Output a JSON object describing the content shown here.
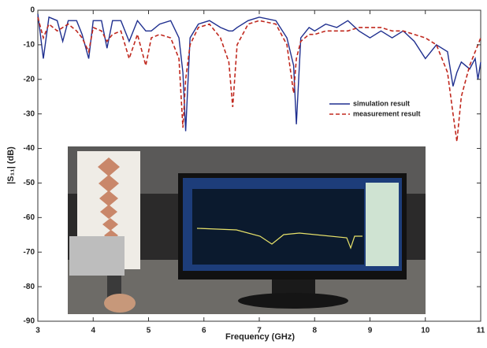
{
  "chart_data": {
    "type": "line",
    "xlabel": "Frequency (GHz)",
    "ylabel": "|S₁₁| (dB)",
    "x": [
      3.0,
      3.1,
      3.2,
      3.35,
      3.45,
      3.55,
      3.7,
      3.8,
      3.92,
      4.0,
      4.15,
      4.25,
      4.35,
      4.5,
      4.65,
      4.8,
      4.95,
      5.05,
      5.2,
      5.4,
      5.55,
      5.62,
      5.67,
      5.75,
      5.9,
      6.1,
      6.3,
      6.45,
      6.52,
      6.6,
      6.8,
      7.0,
      7.3,
      7.5,
      7.62,
      7.67,
      7.75,
      7.9,
      8.0,
      8.2,
      8.4,
      8.6,
      8.8,
      9.0,
      9.2,
      9.4,
      9.6,
      9.8,
      10.0,
      10.2,
      10.4,
      10.5,
      10.57,
      10.65,
      10.8,
      10.9,
      10.95,
      11.0
    ],
    "series": [
      {
        "name": "simulation result",
        "color": "#1f2f8f",
        "dash": false,
        "values": [
          -1,
          -14,
          -2,
          -3,
          -9,
          -3,
          -3,
          -7,
          -14,
          -3,
          -3,
          -11,
          -3,
          -3,
          -9,
          -3,
          -6,
          -6,
          -4,
          -3,
          -8,
          -18,
          -35,
          -8,
          -4,
          -3,
          -5,
          -6,
          -6,
          -5,
          -3,
          -2,
          -3,
          -8,
          -16,
          -33,
          -8,
          -5,
          -6,
          -4,
          -5,
          -3,
          -6,
          -8,
          -6,
          -8,
          -6,
          -9,
          -14,
          -10,
          -12,
          -22,
          -18,
          -15,
          -17,
          -14,
          -20,
          -15
        ]
      },
      {
        "name": "measurement result",
        "color": "#c0281e",
        "dash": true,
        "values": [
          -2,
          -8,
          -4,
          -6,
          -5,
          -4,
          -6,
          -8,
          -12,
          -5,
          -6,
          -9,
          -7,
          -6,
          -14,
          -7,
          -16,
          -8,
          -7,
          -8,
          -14,
          -34,
          -20,
          -10,
          -5,
          -4,
          -8,
          -15,
          -28,
          -10,
          -4,
          -3,
          -4,
          -10,
          -24,
          -14,
          -9,
          -7,
          -7,
          -6,
          -6,
          -6,
          -5,
          -5,
          -5,
          -6,
          -6,
          -7,
          -8,
          -10,
          -18,
          -30,
          -38,
          -25,
          -16,
          -12,
          -10,
          -8
        ]
      }
    ],
    "xlim": [
      3,
      11
    ],
    "xticks": [
      3,
      4,
      5,
      6,
      7,
      8,
      9,
      10,
      11
    ],
    "ylim": [
      -90,
      0
    ],
    "yticks": [
      -90,
      -80,
      -70,
      -60,
      -50,
      -40,
      -30,
      -20,
      -10,
      0
    ],
    "grid": false,
    "legend": "right"
  }
}
